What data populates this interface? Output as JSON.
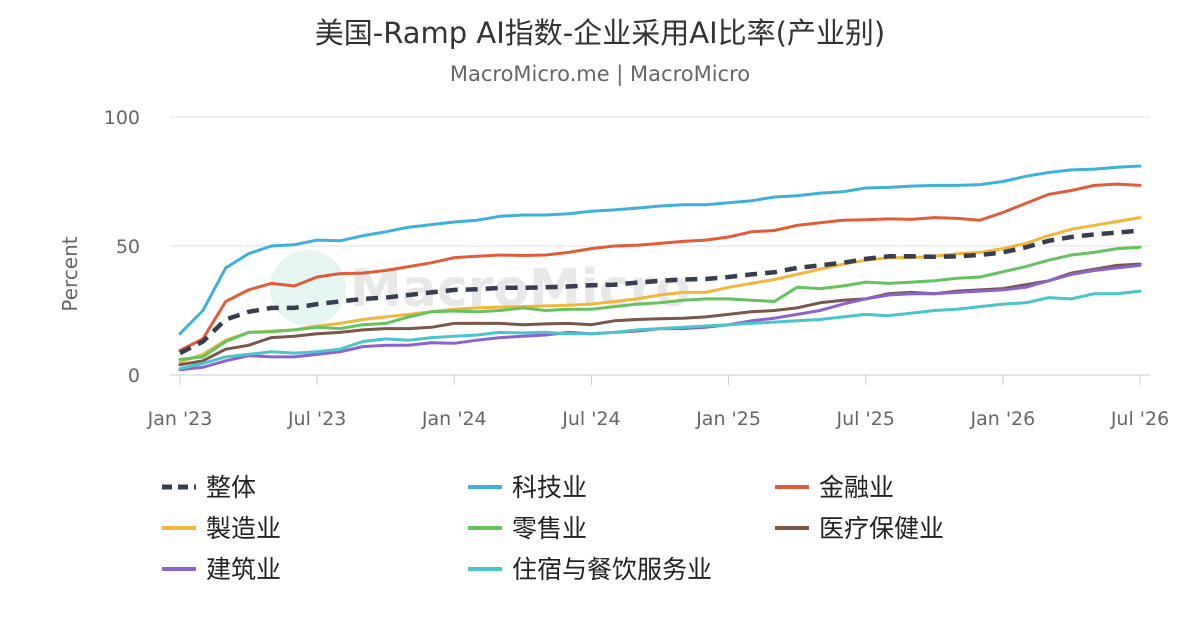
{
  "chart_data": {
    "type": "line",
    "title": "美国-Ramp AI指数-企业采用AI比率(产业别)",
    "subtitle": "MacroMicro.me | MacroMicro",
    "watermark": "MacroMicro",
    "ylabel": "Percent",
    "ylim": [
      0,
      100
    ],
    "yticks": [
      0,
      50,
      100
    ],
    "x_start": "2023-01",
    "x_end": "2026-07",
    "xticks": [
      "Jan '23",
      "Jul '23",
      "Jan '24",
      "Jul '24",
      "Jan '25",
      "Jul '25",
      "Jan '26",
      "Jul '26"
    ],
    "x": [
      "2023-01",
      "2023-02",
      "2023-03",
      "2023-04",
      "2023-05",
      "2023-06",
      "2023-07",
      "2023-08",
      "2023-09",
      "2023-10",
      "2023-11",
      "2023-12",
      "2024-01",
      "2024-02",
      "2024-03",
      "2024-04",
      "2024-05",
      "2024-06",
      "2024-07",
      "2024-08",
      "2024-09",
      "2024-10",
      "2024-11",
      "2024-12",
      "2025-01",
      "2025-02",
      "2025-03",
      "2025-04",
      "2025-05",
      "2025-06",
      "2025-07",
      "2025-08",
      "2025-09",
      "2025-10",
      "2025-11",
      "2025-12",
      "2026-01",
      "2026-02",
      "2026-03",
      "2026-04",
      "2026-05",
      "2026-06",
      "2026-07"
    ],
    "series": [
      {
        "name": "整体",
        "color": "#383d4f",
        "dashed": true,
        "values": [
          8.5,
          13,
          21.5,
          24.5,
          26,
          26,
          27.5,
          28.5,
          29.5,
          30,
          31,
          32,
          33,
          33.2,
          33.8,
          33.8,
          34,
          34.3,
          34.8,
          35,
          35.8,
          36.5,
          37,
          37.2,
          38,
          39,
          39.8,
          41.5,
          42.5,
          43.5,
          45,
          46,
          46,
          45.8,
          46,
          46.5,
          47.5,
          49.5,
          52,
          53.5,
          54.5,
          55.2,
          56
        ]
      },
      {
        "name": "科技业",
        "color": "#3fb0d9",
        "values": [
          16,
          25,
          41.5,
          47,
          50,
          50.5,
          52.3,
          52,
          54,
          55.5,
          57.3,
          58.3,
          59.3,
          60,
          61.5,
          62,
          62,
          62.5,
          63.5,
          64,
          64.7,
          65.5,
          66,
          66,
          66.8,
          67.5,
          69,
          69.5,
          70.5,
          71,
          72.5,
          72.7,
          73.2,
          73.5,
          73.5,
          73.8,
          75,
          77,
          78.5,
          79.5,
          79.8,
          80.5,
          81
        ]
      },
      {
        "name": "金融业",
        "color": "#e05d3c",
        "values": [
          9.5,
          14,
          28.5,
          33,
          35.5,
          34.5,
          38,
          39.3,
          39.5,
          40.5,
          42,
          43.5,
          45.5,
          46,
          46.5,
          46.3,
          46.5,
          47.5,
          49,
          50,
          50.3,
          51,
          51.8,
          52.3,
          53.5,
          55.5,
          56,
          58,
          59,
          60,
          60.2,
          60.5,
          60.3,
          61,
          60.7,
          60,
          63,
          66.5,
          70,
          71.5,
          73.5,
          74,
          73.5
        ]
      },
      {
        "name": "製造业",
        "color": "#f2b63d",
        "values": [
          5,
          8,
          13.5,
          16.5,
          17,
          17.5,
          19,
          20,
          21.5,
          22.5,
          23.5,
          24.5,
          25.5,
          26,
          26.3,
          26.5,
          26.8,
          27,
          27.5,
          28.5,
          29.5,
          31,
          32,
          32,
          34,
          35.5,
          37,
          39,
          41,
          43,
          44.5,
          45.5,
          45.5,
          46,
          47,
          47.5,
          49,
          51,
          54,
          56.5,
          58,
          59.5,
          61
        ]
      },
      {
        "name": "零售业",
        "color": "#64c25f",
        "values": [
          6,
          7,
          13,
          16.5,
          16.8,
          17.5,
          18.5,
          18,
          19.5,
          20,
          22.5,
          24.5,
          24.8,
          24.5,
          25,
          26,
          25,
          25.5,
          25.5,
          26.5,
          27.5,
          28,
          29,
          29.5,
          29.5,
          29,
          28.5,
          34,
          33.5,
          34.5,
          36,
          35.5,
          36,
          36.5,
          37.5,
          38,
          40,
          42,
          44.5,
          46.5,
          47.5,
          49,
          49.5
        ]
      },
      {
        "name": "医疗保健业",
        "color": "#7a574a",
        "values": [
          4,
          5.5,
          10,
          11.5,
          14.5,
          15,
          16,
          16.5,
          17.5,
          18,
          18,
          18.5,
          20,
          20,
          20,
          19.5,
          19.8,
          20,
          19.5,
          21,
          21.5,
          21.8,
          22,
          22.5,
          23.5,
          24.5,
          25,
          26,
          28,
          29,
          29.5,
          31.5,
          32,
          31.5,
          32.5,
          33,
          33.5,
          35,
          36.5,
          39.5,
          41,
          42.5,
          43
        ]
      },
      {
        "name": "建筑业",
        "color": "#8e62cc",
        "values": [
          2,
          3,
          5.5,
          7.5,
          7,
          7,
          8,
          9,
          11,
          11.5,
          11.5,
          12.5,
          12.3,
          13.5,
          14.5,
          15,
          15.5,
          16.5,
          16,
          16.5,
          17,
          18,
          18,
          18.5,
          19.5,
          21,
          22,
          23.5,
          25,
          27.5,
          29.5,
          31,
          31.5,
          31.5,
          32,
          32.5,
          33,
          34,
          36.5,
          39,
          40.5,
          41.5,
          42.5
        ]
      },
      {
        "name": "住宿与餐饮服务业",
        "color": "#4cc4cc",
        "values": [
          2.5,
          4.5,
          7,
          8,
          9,
          8.5,
          9,
          10,
          13,
          14,
          13.5,
          14.5,
          15,
          15.5,
          16.5,
          16.3,
          16.5,
          16,
          16,
          16.5,
          17.5,
          18,
          18.5,
          19,
          19.5,
          20,
          20.5,
          21,
          21.5,
          22.5,
          23.5,
          23,
          24,
          25,
          25.5,
          26.5,
          27.5,
          28,
          30,
          29.5,
          31.5,
          31.5,
          32.5
        ]
      }
    ],
    "legend_position": "bottom",
    "grid": true
  }
}
